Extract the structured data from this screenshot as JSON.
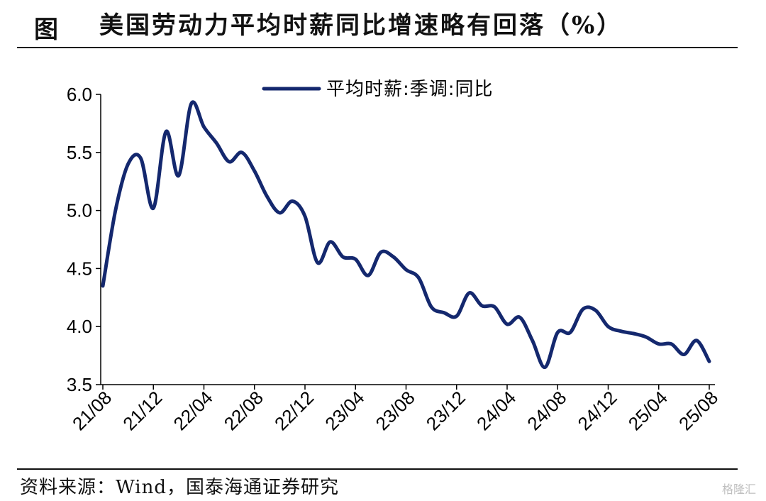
{
  "header": {
    "prefix": "图",
    "title": "美国劳动力平均时薪同比增速略有回落（%）"
  },
  "footer": {
    "source": "资料来源：Wind，国泰海通证券研究",
    "watermark": "格隆汇"
  },
  "colors": {
    "line": "#14286e",
    "axis": "#000000"
  },
  "chart_data": {
    "type": "line",
    "title": "美国劳动力平均时薪同比增速略有回落（%）",
    "xlabel": "",
    "ylabel": "",
    "ylim": [
      3.5,
      6.0
    ],
    "yticks": [
      "3.5",
      "4.0",
      "4.5",
      "5.0",
      "5.5",
      "6.0"
    ],
    "xticks": [
      "21/08",
      "21/12",
      "22/04",
      "22/08",
      "22/12",
      "23/04",
      "23/08",
      "23/12",
      "24/04",
      "24/08",
      "24/12",
      "25/04",
      "25/08"
    ],
    "legend": {
      "position": "top",
      "entries": [
        "平均时薪:季调:同比"
      ]
    },
    "grid": false,
    "series": [
      {
        "name": "平均时薪:季调:同比",
        "x": [
          "21/08",
          "21/09",
          "21/10",
          "21/11",
          "21/12",
          "22/01",
          "22/02",
          "22/03",
          "22/04",
          "22/05",
          "22/06",
          "22/07",
          "22/08",
          "22/09",
          "22/10",
          "22/11",
          "22/12",
          "23/01",
          "23/02",
          "23/03",
          "23/04",
          "23/05",
          "23/06",
          "23/07",
          "23/08",
          "23/09",
          "23/10",
          "23/11",
          "23/12",
          "24/01",
          "24/02",
          "24/03",
          "24/04",
          "24/05",
          "24/06",
          "24/07",
          "24/08",
          "24/09",
          "24/10",
          "24/11",
          "24/12",
          "25/01",
          "25/02",
          "25/03",
          "25/04",
          "25/05",
          "25/06",
          "25/07",
          "25/08"
        ],
        "values": [
          4.35,
          5.0,
          5.4,
          5.45,
          5.02,
          5.68,
          5.3,
          5.92,
          5.72,
          5.58,
          5.42,
          5.5,
          5.34,
          5.12,
          4.98,
          5.08,
          4.95,
          4.55,
          4.73,
          4.6,
          4.58,
          4.44,
          4.64,
          4.6,
          4.49,
          4.42,
          4.17,
          4.12,
          4.09,
          4.29,
          4.18,
          4.17,
          4.02,
          4.08,
          3.88,
          3.65,
          3.95,
          3.95,
          4.15,
          4.14,
          4.0,
          3.96,
          3.94,
          3.91,
          3.85,
          3.85,
          3.76,
          3.88,
          3.7
        ]
      }
    ]
  }
}
